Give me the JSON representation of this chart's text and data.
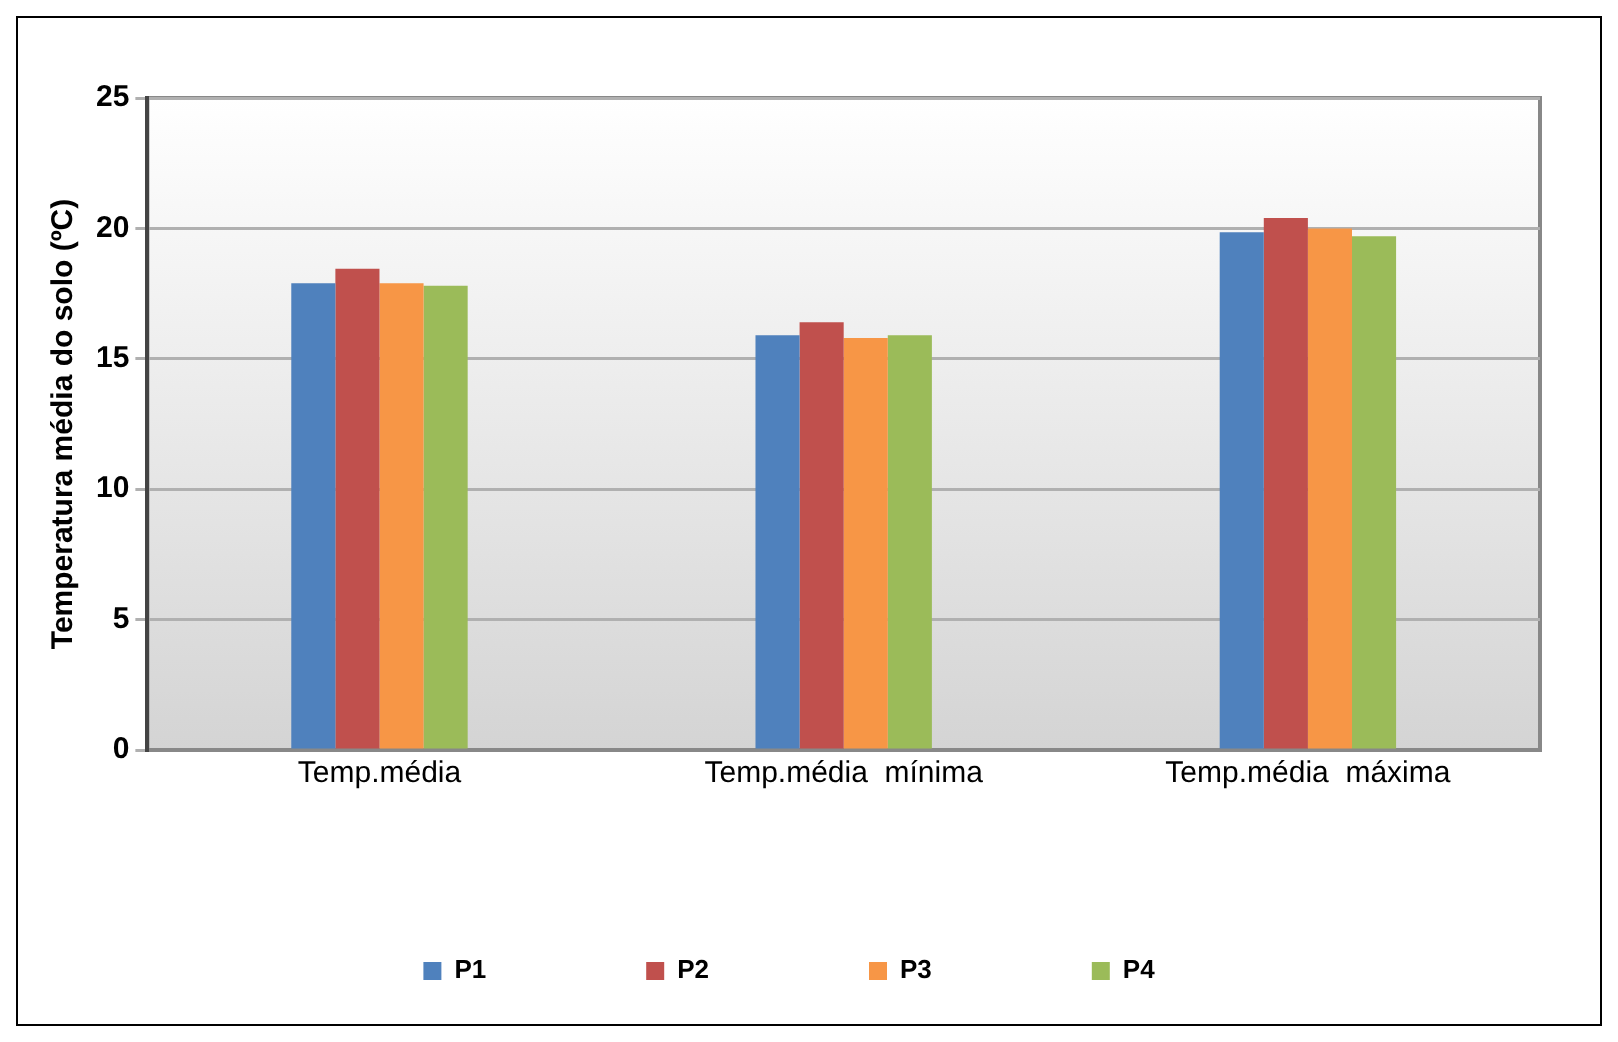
{
  "chart_data": {
    "type": "bar",
    "ylabel": "Temperatura média do solo (ºC)",
    "categories": [
      "Temp.média",
      "Temp.média  mínima",
      "Temp.média  máxima"
    ],
    "series": [
      {
        "name": "P1",
        "color": "#4f81bd",
        "values": [
          17.9,
          15.9,
          19.85
        ]
      },
      {
        "name": "P2",
        "color": "#c0504d",
        "values": [
          18.45,
          16.4,
          20.4
        ]
      },
      {
        "name": "P3",
        "color": "#f79646",
        "values": [
          17.9,
          15.8,
          20.0
        ]
      },
      {
        "name": "P4",
        "color": "#9bbb59",
        "values": [
          17.8,
          15.9,
          19.7
        ]
      }
    ],
    "ylim": [
      0,
      25
    ],
    "yticks": [
      0,
      5,
      10,
      15,
      20,
      25
    ],
    "grid": "y",
    "legend": "bottom"
  }
}
